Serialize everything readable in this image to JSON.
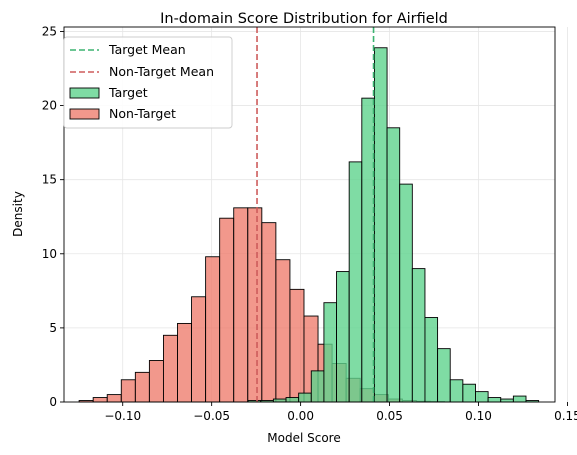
{
  "chart_data": {
    "type": "histogram",
    "title": "In-domain Score Distribution for Airfield",
    "xlabel": "Model Score",
    "ylabel": "Density",
    "xlim": [
      -0.133,
      0.143
    ],
    "ylim": [
      0,
      25.3
    ],
    "xticks": [
      -0.1,
      -0.05,
      0.0,
      0.05,
      0.1,
      0.15
    ],
    "xtick_labels": [
      "−0.10",
      "−0.05",
      "0.00",
      "0.05",
      "0.10",
      "0.15"
    ],
    "yticks": [
      0,
      5,
      10,
      15,
      20,
      25
    ],
    "ytick_labels": [
      "0",
      "5",
      "10",
      "15",
      "20",
      "25"
    ],
    "grid": true,
    "legend_position": "top-left",
    "legend": [
      {
        "label": "Target Mean",
        "kind": "dashed-line",
        "color": "#3cb371"
      },
      {
        "label": "Non-Target Mean",
        "kind": "dashed-line",
        "color": "#cd5c5c"
      },
      {
        "label": "Target",
        "kind": "patch",
        "color": "#5fd38d"
      },
      {
        "label": "Non-Target",
        "kind": "patch",
        "color": "#ee7566"
      }
    ],
    "mean_lines": [
      {
        "name": "Target Mean",
        "x": 0.041,
        "color": "#3cb371"
      },
      {
        "name": "Non-Target Mean",
        "x": -0.0245,
        "color": "#cd5c5c"
      }
    ],
    "series": [
      {
        "name": "Non-Target",
        "color": "#ee7566",
        "alpha": 0.75,
        "bin_width": 0.0079,
        "bins_start": [
          -0.1245,
          -0.1166,
          -0.1087,
          -0.1008,
          -0.0929,
          -0.085,
          -0.0771,
          -0.0692,
          -0.0613,
          -0.0534,
          -0.0455,
          -0.0376,
          -0.0297,
          -0.0218,
          -0.0139,
          -0.006,
          0.0019,
          0.0098,
          0.0177,
          0.0256,
          0.0335,
          0.0414,
          0.0493,
          0.0572,
          0.0651,
          0.073
        ],
        "values": [
          0.1,
          0.3,
          0.5,
          1.5,
          2.0,
          2.8,
          4.5,
          5.3,
          7.1,
          9.8,
          12.4,
          13.1,
          13.1,
          12.1,
          9.6,
          7.6,
          5.8,
          3.9,
          2.6,
          1.6,
          0.9,
          0.5,
          0.2,
          0.1,
          0.05,
          0.03
        ]
      },
      {
        "name": "Target",
        "color": "#5fd38d",
        "alpha": 0.8,
        "bin_width": 0.0071,
        "bins_start": [
          -0.0295,
          -0.0224,
          -0.0153,
          -0.0082,
          -0.0011,
          0.006,
          0.0131,
          0.0202,
          0.0273,
          0.0344,
          0.0415,
          0.0486,
          0.0557,
          0.0628,
          0.0699,
          0.077,
          0.0841,
          0.0912,
          0.0983,
          0.1054,
          0.1125,
          0.1196,
          0.1267
        ],
        "values": [
          0.1,
          0.1,
          0.2,
          0.3,
          0.6,
          2.1,
          6.7,
          8.8,
          16.2,
          20.5,
          23.9,
          18.5,
          14.7,
          9.0,
          5.7,
          3.6,
          1.5,
          1.2,
          0.7,
          0.3,
          0.2,
          0.4,
          0.1
        ]
      }
    ]
  }
}
